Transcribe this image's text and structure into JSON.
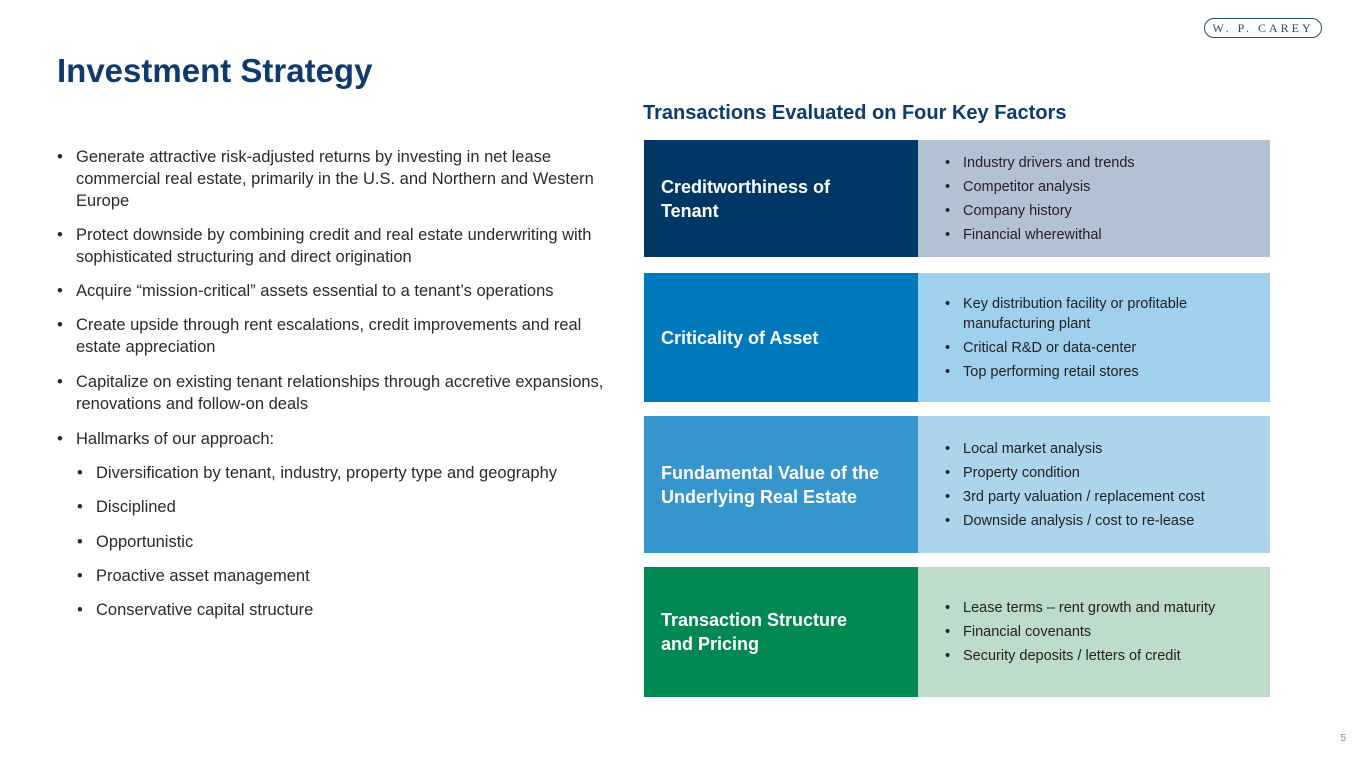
{
  "logo": "W. P. CAREY",
  "title": "Investment Strategy",
  "subtitle": "Transactions Evaluated on Four Key Factors",
  "bullets": [
    "Generate attractive risk-adjusted returns by investing in net lease commercial real estate, primarily in the U.S. and Northern and Western Europe",
    "Protect downside by combining credit and real estate underwriting with sophisticated structuring and direct origination",
    "Acquire “mission-critical” assets essential to a tenant’s operations",
    "Create upside through rent escalations, credit improvements and real estate appreciation",
    "Capitalize on existing tenant relationships through accretive expansions, renovations and follow-on deals",
    "Hallmarks of our approach:"
  ],
  "sub_bullets": [
    "Diversification by tenant, industry, property type and geography",
    "Disciplined",
    "Opportunistic",
    "Proactive asset management",
    "Conservative capital structure"
  ],
  "factors": [
    {
      "label": "Creditworthiness of Tenant",
      "color": "#003764",
      "bg": "#b3c2d3",
      "items": [
        "Industry drivers and trends",
        "Competitor analysis",
        "Company history",
        "Financial wherewithal"
      ]
    },
    {
      "label": "Criticality of Asset",
      "color": "#0079bc",
      "bg": "#9fd1ee",
      "items": [
        "Key distribution facility or profitable manufacturing plant",
        "Critical R&D or data-center",
        "Top performing retail stores"
      ]
    },
    {
      "label": "Fundamental Value of the Underlying Real Estate",
      "color": "#3595cc",
      "bg": "#acd5ec",
      "items": [
        "Local market analysis",
        "Property condition",
        "3rd party valuation / replacement cost",
        "Downside analysis / cost to re-lease"
      ]
    },
    {
      "label": "Transaction Structure and Pricing",
      "color": "#008852",
      "bg": "#bddbc9",
      "items": [
        "Lease terms – rent growth and maturity",
        "Financial covenants",
        "Security deposits / letters of credit"
      ]
    }
  ],
  "page_number": "5"
}
